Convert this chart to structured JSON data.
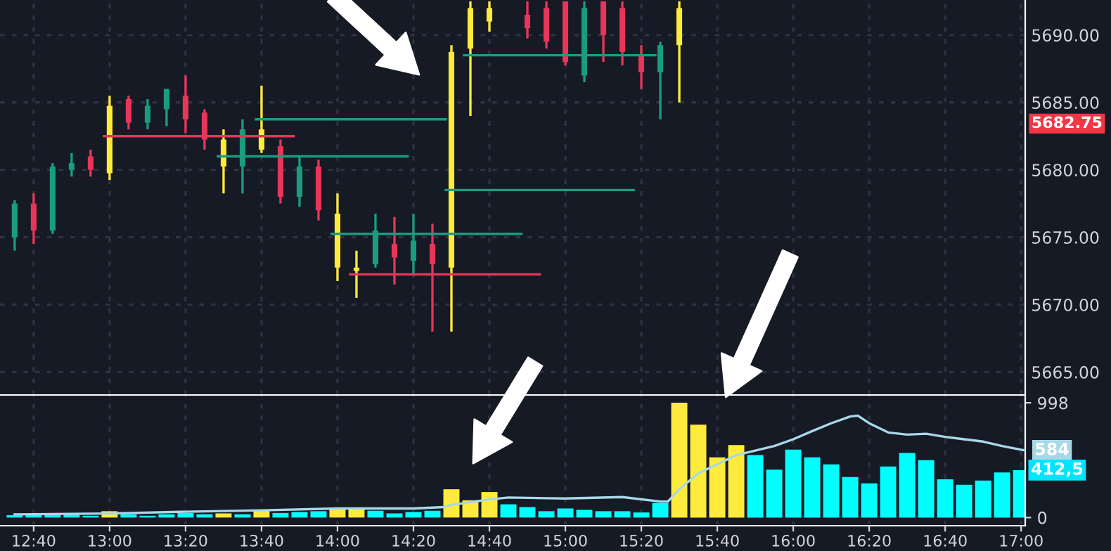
{
  "chart_data": [
    {
      "type": "candlestick",
      "x": [
        12.5833,
        12.6667,
        12.75,
        12.8333,
        12.9167,
        13.0,
        13.0833,
        13.1667,
        13.25,
        13.3333,
        13.4167,
        13.5,
        13.5833,
        13.6667,
        13.75,
        13.8333,
        13.9167,
        14.0,
        14.0833,
        14.1667,
        14.25,
        14.3333,
        14.4167,
        14.5,
        14.5833,
        14.6667,
        14.8333,
        14.9167,
        15.0,
        15.0833,
        15.1667,
        15.25,
        15.3333,
        15.4167,
        15.5
      ],
      "ohlc": [
        [
          5675.0,
          5677.75,
          5674.0,
          5677.5
        ],
        [
          5677.5,
          5678.25,
          5674.5,
          5675.5
        ],
        [
          5675.5,
          5680.5,
          5675.25,
          5680.25
        ],
        [
          5680.0,
          5681.25,
          5679.5,
          5680.5
        ],
        [
          5681.0,
          5681.5,
          5679.5,
          5680.0
        ],
        [
          5679.75,
          5685.5,
          5679.25,
          5684.75
        ],
        [
          5685.25,
          5685.5,
          5683.0,
          5683.5
        ],
        [
          5683.5,
          5685.25,
          5683.0,
          5684.75
        ],
        [
          5684.5,
          5686.0,
          5683.25,
          5686.0
        ],
        [
          5685.5,
          5687.0,
          5682.75,
          5683.75
        ],
        [
          5684.25,
          5684.5,
          5681.5,
          5682.25
        ],
        [
          5682.25,
          5683.0,
          5678.25,
          5680.25
        ],
        [
          5680.25,
          5683.75,
          5678.25,
          5683.0
        ],
        [
          5683.0,
          5686.25,
          5681.25,
          5681.5
        ],
        [
          5681.75,
          5682.25,
          5677.5,
          5678.0
        ],
        [
          5678.0,
          5681.0,
          5677.25,
          5680.25
        ],
        [
          5680.25,
          5680.75,
          5676.25,
          5677.0
        ],
        [
          5676.75,
          5678.25,
          5671.75,
          5672.75
        ],
        [
          5672.75,
          5674.0,
          5670.5,
          5672.5
        ],
        [
          5673.0,
          5676.75,
          5672.75,
          5675.5
        ],
        [
          5674.5,
          5676.5,
          5671.5,
          5673.5
        ],
        [
          5673.25,
          5676.75,
          5672.25,
          5674.75
        ],
        [
          5674.5,
          5676.0,
          5668.0,
          5673.0
        ],
        [
          5672.75,
          5689.25,
          5668.0,
          5688.75
        ],
        [
          5689.0,
          5692.5,
          5684.0,
          5692.0
        ],
        [
          5692.0,
          5692.5,
          5690.25,
          5691.0
        ],
        [
          5691.5,
          5692.5,
          5689.75,
          5690.5
        ],
        [
          5692.0,
          5692.5,
          5689.0,
          5689.5
        ],
        [
          5692.5,
          5692.5,
          5687.75,
          5688.0
        ],
        [
          5687.0,
          5692.5,
          5686.5,
          5692.0
        ],
        [
          5692.5,
          5692.5,
          5688.0,
          5690.0
        ],
        [
          5692.0,
          5692.5,
          5687.75,
          5688.75
        ],
        [
          5688.5,
          5689.25,
          5686.0,
          5687.25
        ],
        [
          5687.25,
          5689.5,
          5683.75,
          5689.25
        ],
        [
          5689.25,
          5692.5,
          5685.0,
          5692.0
        ]
      ],
      "colors": [
        "#1a9c80",
        "#e8355a",
        "#1a9c80",
        "#1a9c80",
        "#e8355a",
        "#ffeb3b",
        "#e8355a",
        "#1a9c80",
        "#1a9c80",
        "#e8355a",
        "#e8355a",
        "#ffeb3b",
        "#1a9c80",
        "#ffeb3b",
        "#e8355a",
        "#1a9c80",
        "#e8355a",
        "#ffeb3b",
        "#ffeb3b",
        "#1a9c80",
        "#e8355a",
        "#1a9c80",
        "#e8355a",
        "#ffeb3b",
        "#ffeb3b",
        "#ffeb3b",
        "#e8355a",
        "#e8355a",
        "#e8355a",
        "#1a9c80",
        "#e8355a",
        "#e8355a",
        "#e8355a",
        "#1a9c80",
        "#ffeb3b"
      ],
      "series": [
        {
          "type": "line",
          "color": "#e8355a",
          "x": [
            12.975,
            13.808
          ],
          "values": [
            5682.5,
            5682.5
          ]
        },
        {
          "type": "line",
          "color": "#1a9c80",
          "x": [
            13.642,
            14.475
          ],
          "values": [
            5683.75,
            5683.75
          ]
        },
        {
          "type": "line",
          "color": "#1a9c80",
          "x": [
            13.475,
            14.308
          ],
          "values": [
            5681.0,
            5681.0
          ]
        },
        {
          "type": "line",
          "color": "#1a9c80",
          "x": [
            13.975,
            14.807
          ],
          "values": [
            5675.25,
            5675.25
          ]
        },
        {
          "type": "line",
          "color": "#e8355a",
          "x": [
            14.055,
            14.888
          ],
          "values": [
            5672.25,
            5672.25
          ]
        },
        {
          "type": "line",
          "color": "#1a9c80",
          "x": [
            14.475,
            15.3
          ],
          "values": [
            5678.5,
            5678.5
          ]
        },
        {
          "type": "line",
          "color": "#1a9c80",
          "x": [
            14.555,
            15.395
          ],
          "values": [
            5688.5,
            5688.5
          ]
        }
      ],
      "xlim": [
        12.519,
        17.018
      ],
      "xticks": [
        {
          "value": 12.6667,
          "label": null
        },
        {
          "value": 13.0,
          "label": null
        },
        {
          "value": 13.3333,
          "label": null
        },
        {
          "value": 13.6667,
          "label": null
        },
        {
          "value": 14.0,
          "label": null
        },
        {
          "value": 14.3333,
          "label": null
        },
        {
          "value": 14.6667,
          "label": null
        },
        {
          "value": 15.0,
          "label": null
        },
        {
          "value": 15.3333,
          "label": null
        },
        {
          "value": 15.6667,
          "label": null
        },
        {
          "value": 16.0,
          "label": null
        },
        {
          "value": 16.3333,
          "label": null
        },
        {
          "value": 16.6667,
          "label": null
        },
        {
          "value": 17.0,
          "label": null
        }
      ],
      "ylim": [
        5663.3,
        5692.6
      ],
      "yticks": [
        {
          "value": 5665,
          "label": "5665.00"
        },
        {
          "value": 5670,
          "label": "5670.00"
        },
        {
          "value": 5675,
          "label": "5675.00"
        },
        {
          "value": 5680,
          "label": "5680.00"
        },
        {
          "value": 5685,
          "label": "5685.00"
        },
        {
          "value": 5690,
          "label": "5690.00"
        }
      ],
      "grid": true,
      "tick_labels": "y",
      "annotations": [
        "5682.75"
      ]
    },
    {
      "type": "bar",
      "x": [
        12.5833,
        12.6667,
        12.75,
        12.8333,
        12.9167,
        13.0,
        13.0833,
        13.1667,
        13.25,
        13.3333,
        13.4167,
        13.5,
        13.5833,
        13.6667,
        13.75,
        13.8333,
        13.9167,
        14.0,
        14.0833,
        14.1667,
        14.25,
        14.3333,
        14.4167,
        14.5,
        14.5833,
        14.6667,
        14.75,
        14.8333,
        14.9167,
        15.0,
        15.0833,
        15.1667,
        15.25,
        15.3333,
        15.4167,
        15.5,
        15.5833,
        15.6667,
        15.75,
        15.8333,
        15.9167,
        16.0,
        16.0833,
        16.1667,
        16.25,
        16.3333,
        16.4167,
        16.5,
        16.5833,
        16.6667,
        16.75,
        16.8333,
        16.9167,
        17.0
      ],
      "values": [
        20,
        28,
        28,
        28,
        16,
        55,
        28,
        16,
        28,
        40,
        28,
        36,
        28,
        63,
        40,
        48,
        55,
        79,
        79,
        59,
        36,
        48,
        59,
        246,
        150,
        222,
        115,
        91,
        55,
        79,
        67,
        55,
        55,
        44,
        127,
        998,
        808,
        523,
        630,
        543,
        416,
        590,
        523,
        463,
        352,
        297,
        444,
        562,
        499,
        333,
        285,
        321,
        392,
        412.5
      ],
      "colors": [
        "#00ffff",
        "#00ffff",
        "#00ffff",
        "#00ffff",
        "#00ffff",
        "#ffeb3b",
        "#00ffff",
        "#00ffff",
        "#00ffff",
        "#00ffff",
        "#00ffff",
        "#ffeb3b",
        "#00ffff",
        "#ffeb3b",
        "#00ffff",
        "#00ffff",
        "#00ffff",
        "#ffeb3b",
        "#ffeb3b",
        "#00ffff",
        "#00ffff",
        "#00ffff",
        "#00ffff",
        "#ffeb3b",
        "#ffeb3b",
        "#ffeb3b",
        "#00ffff",
        "#00ffff",
        "#00ffff",
        "#00ffff",
        "#00ffff",
        "#00ffff",
        "#00ffff",
        "#00ffff",
        "#00ffff",
        "#ffeb3b",
        "#ffeb3b",
        "#ffeb3b",
        "#ffeb3b",
        "#00ffff",
        "#00ffff",
        "#00ffff",
        "#00ffff",
        "#00ffff",
        "#00ffff",
        "#00ffff",
        "#00ffff",
        "#00ffff",
        "#00ffff",
        "#00ffff",
        "#00ffff",
        "#00ffff",
        "#00ffff",
        "#00ffff"
      ],
      "series": [
        {
          "type": "line",
          "color": "#a8d8e8",
          "x": [
            12.5833,
            13.0,
            13.3333,
            13.6667,
            14.0,
            14.3333,
            14.4667,
            14.5,
            14.6667,
            14.75,
            15.0,
            15.25,
            15.4167,
            15.45,
            15.5,
            15.5833,
            15.6667,
            15.75,
            15.8333,
            15.9167,
            16.0,
            16.0833,
            16.1667,
            16.25,
            16.2833,
            16.3333,
            16.4167,
            16.5,
            16.5833,
            16.6667,
            16.75,
            16.8333,
            16.9167,
            17.0,
            17.0167
          ],
          "values": [
            28,
            35,
            51,
            63,
            79,
            79,
            91,
            110,
            158,
            174,
            166,
            178,
            139,
            139,
            246,
            384,
            463,
            543,
            582,
            622,
            681,
            752,
            820,
            879,
            887,
            820,
            740,
            721,
            729,
            701,
            681,
            661,
            622,
            590,
            584
          ]
        }
      ],
      "xlim": [
        12.519,
        17.018
      ],
      "xticks": [
        {
          "value": 12.6667,
          "label": "12:40"
        },
        {
          "value": 13.0,
          "label": "13:00"
        },
        {
          "value": 13.3333,
          "label": "13:20"
        },
        {
          "value": 13.6667,
          "label": "13:40"
        },
        {
          "value": 14.0,
          "label": "14:00"
        },
        {
          "value": 14.3333,
          "label": "14:20"
        },
        {
          "value": 14.6667,
          "label": "14:40"
        },
        {
          "value": 15.0,
          "label": "15:00"
        },
        {
          "value": 15.3333,
          "label": "15:20"
        },
        {
          "value": 15.6667,
          "label": "15:40"
        },
        {
          "value": 16.0,
          "label": "16:00"
        },
        {
          "value": 16.3333,
          "label": "16:20"
        },
        {
          "value": 16.6667,
          "label": "16:40"
        },
        {
          "value": 17.0,
          "label": "17:00"
        }
      ],
      "ylim": [
        -71,
        1066
      ],
      "yticks": [
        0,
        998
      ],
      "grid": "x",
      "annotations": [
        {
          "text": "584",
          "x": 17.0167,
          "y": 584
        },
        {
          "text": "412,5",
          "x": 17.0,
          "y": 412.5
        }
      ]
    }
  ]
}
